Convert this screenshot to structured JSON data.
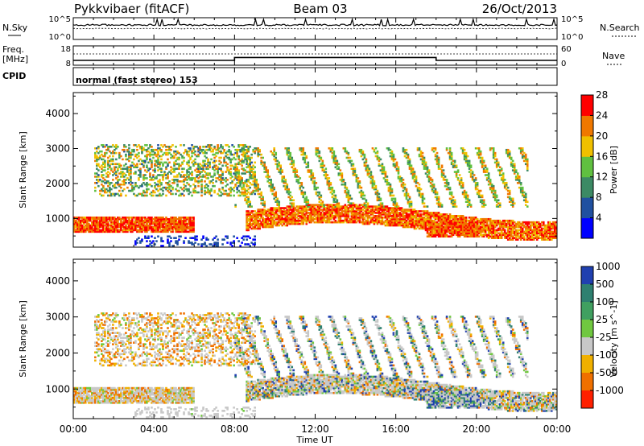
{
  "header": {
    "station": "Pykkvibaer (fitACF)",
    "beam": "Beam 03",
    "date": "26/Oct/2013"
  },
  "top_panels": {
    "nsky_label": "N.Sky",
    "nsky_ticks": [
      "10^5",
      "10^0"
    ],
    "nsearch_label": "N.Search",
    "nsearch_ticks": [
      "10^5",
      "10^0"
    ],
    "freq_label_1": "Freq.",
    "freq_label_2": "[MHz]",
    "freq_ticks": [
      "18",
      "8"
    ],
    "nave_label": "Nave",
    "nave_ticks": [
      "60",
      "0"
    ],
    "cpid_label": "CPID",
    "cpid_text": "normal (fast stereo) 153"
  },
  "chart_data": [
    {
      "type": "heatmap",
      "title": "",
      "xlabel": "Time UT",
      "ylabel": "Slant Range [km]",
      "x_ticks": [
        "00:00",
        "04:00",
        "08:00",
        "12:00",
        "16:00",
        "20:00",
        "00:00"
      ],
      "x_range_hours": [
        0,
        24
      ],
      "y_ticks": [
        1000,
        2000,
        3000,
        4000
      ],
      "ylim": [
        180,
        4600
      ],
      "colorbar_label": "Power [dB]",
      "colorbar_ticks": [
        4,
        8,
        12,
        16,
        20,
        24,
        28
      ],
      "colorbar_range": [
        0,
        32
      ],
      "colors": [
        "#0000ff",
        "#2050a0",
        "#3c8a64",
        "#60c040",
        "#f0c000",
        "#f07800",
        "#ff0000"
      ],
      "features": [
        {
          "name": "near-range echoes",
          "t": [
            0,
            6
          ],
          "range": [
            600,
            1000
          ],
          "power": 28
        },
        {
          "name": "main band",
          "t": [
            8.5,
            24
          ],
          "range": [
            700,
            1300
          ],
          "power": 26
        },
        {
          "name": "diagonal streaks",
          "t": [
            8,
            22
          ],
          "range": [
            1300,
            3000
          ],
          "power": 22
        },
        {
          "name": "dip near 19:00",
          "t": [
            18,
            20
          ],
          "range": [
            500,
            800
          ],
          "power": 24
        }
      ]
    },
    {
      "type": "heatmap",
      "title": "",
      "xlabel": "Time UT",
      "ylabel": "Slant Range [km]",
      "x_ticks": [
        "00:00",
        "04:00",
        "08:00",
        "12:00",
        "16:00",
        "20:00",
        "00:00"
      ],
      "x_range_hours": [
        0,
        24
      ],
      "y_ticks": [
        1000,
        2000,
        3000,
        4000
      ],
      "ylim": [
        180,
        4600
      ],
      "colorbar_label": "Velocity [m s^-1]",
      "colorbar_ticks": [
        "1000",
        "500",
        "100",
        "25",
        "-25",
        "-100",
        "-500",
        "-1000"
      ],
      "colors": [
        "#2040b0",
        "#2e8070",
        "#40a060",
        "#70c840",
        "#c8c8c8",
        "#f0b000",
        "#f07000",
        "#ff2000"
      ],
      "features": [
        {
          "name": "ground scatter",
          "t": [
            0,
            24
          ],
          "range": [
            700,
            2700
          ],
          "velocity": 0
        },
        {
          "name": "positive velocity streaks",
          "t": [
            12,
            22
          ],
          "range": [
            800,
            2400
          ],
          "velocity": 500
        },
        {
          "name": "negative velocity patches",
          "t": [
            4,
            12
          ],
          "range": [
            1800,
            3000
          ],
          "velocity": -300
        }
      ]
    }
  ]
}
